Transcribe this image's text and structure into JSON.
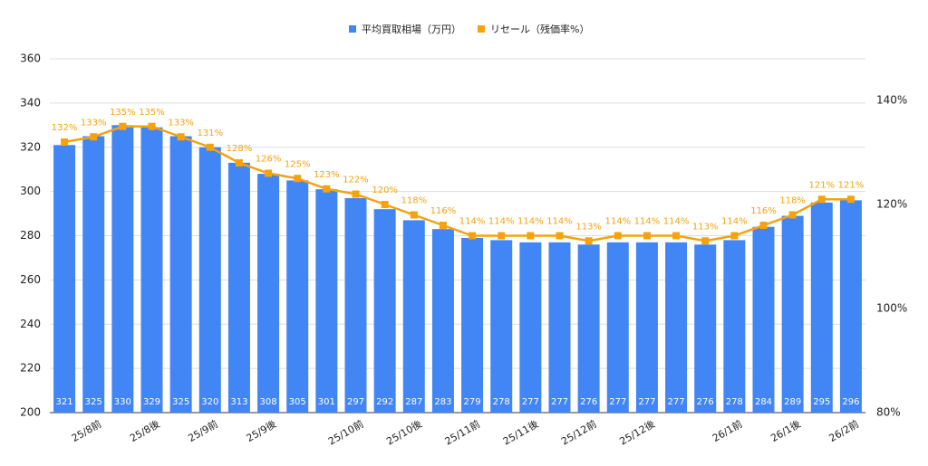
{
  "chart_data": {
    "type": "bar-line",
    "categories": [
      null,
      "25/8前",
      null,
      "25/8後",
      null,
      "25/9前",
      null,
      "25/9後",
      null,
      null,
      "25/10前",
      null,
      "25/10後",
      null,
      "25/11前",
      null,
      "25/11後",
      null,
      "25/12前",
      null,
      "25/12後",
      null,
      null,
      "26/1前",
      null,
      "26/1後",
      null,
      "26/2前"
    ],
    "series": [
      {
        "name": "平均買取相場（万円）",
        "color": "#4285f4",
        "type": "bar",
        "values": [
          321,
          325,
          330,
          329,
          325,
          320,
          313,
          308,
          305,
          301,
          297,
          292,
          287,
          283,
          279,
          278,
          277,
          277,
          276,
          277,
          277,
          277,
          276,
          278,
          284,
          289,
          295,
          296
        ]
      },
      {
        "name": "リセール（残価率%）",
        "color": "#f5a20f",
        "type": "line",
        "axis": "y2",
        "values": [
          132,
          133,
          135,
          135,
          133,
          131,
          128,
          126,
          125,
          123,
          122,
          120,
          118,
          116,
          114,
          114,
          114,
          114,
          113,
          114,
          114,
          114,
          113,
          114,
          116,
          118,
          121,
          121
        ],
        "value_labels": [
          "132%",
          "133%",
          "135%",
          "135%",
          "133%",
          "131%",
          "128%",
          "126%",
          "125%",
          "123%",
          "122%",
          "120%",
          "118%",
          "116%",
          "114%",
          "114%",
          "114%",
          "114%",
          "113%",
          "114%",
          "114%",
          "114%",
          "113%",
          "114%",
          "116%",
          "118%",
          "121%",
          "121%"
        ]
      }
    ],
    "ylim": [
      200,
      360
    ],
    "yticks": [
      200,
      220,
      240,
      260,
      280,
      300,
      320,
      340,
      360
    ],
    "y2lim": [
      80,
      148
    ],
    "y2ticks": [
      {
        "value": 80,
        "label": "80%"
      },
      {
        "value": 100,
        "label": "100%"
      },
      {
        "value": 120,
        "label": "120%"
      },
      {
        "value": 140,
        "label": "140%"
      }
    ],
    "grid": true,
    "legend": "top"
  }
}
